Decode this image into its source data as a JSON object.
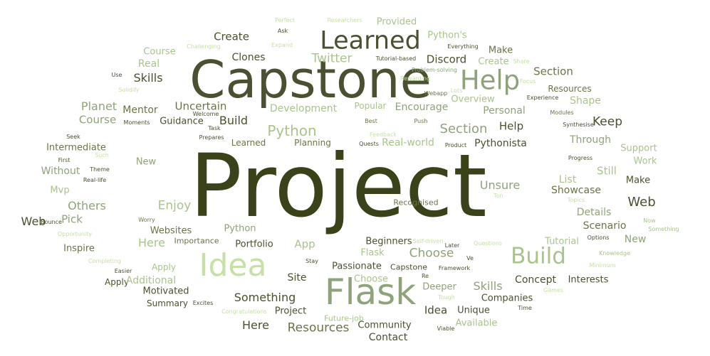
{
  "palette": {
    "c1": "#3a4219",
    "c2": "#4a5030",
    "c3": "#6b7446",
    "c4": "#8fa37a",
    "c5": "#a9c48b",
    "c6": "#c6e0a6"
  },
  "words": [
    {
      "text": "Project",
      "color": "c1"
    },
    {
      "text": "Capstone",
      "color": "c2"
    },
    {
      "text": "Flask",
      "color": "c4"
    },
    {
      "text": "Idea",
      "color": "c6"
    },
    {
      "text": "Learned",
      "color": "c2"
    },
    {
      "text": "Help",
      "color": "c4"
    },
    {
      "text": "Build",
      "color": "c5"
    },
    {
      "text": "Twitter",
      "color": "c5"
    },
    {
      "text": "Create",
      "color": "c2"
    },
    {
      "text": "Provided",
      "color": "c5"
    },
    {
      "text": "Python's",
      "color": "c5"
    },
    {
      "text": "Clones",
      "color": "c2"
    },
    {
      "text": "Discord",
      "color": "c2"
    },
    {
      "text": "Make",
      "color": "c3"
    },
    {
      "text": "Create",
      "color": "c5"
    },
    {
      "text": "Course",
      "color": "c5"
    },
    {
      "text": "Real",
      "color": "c5"
    },
    {
      "text": "Skills",
      "color": "c2"
    },
    {
      "text": "Section",
      "color": "c3"
    },
    {
      "text": "Resources",
      "color": "c3"
    },
    {
      "text": "Shape",
      "color": "c5"
    },
    {
      "text": "Planet",
      "color": "c4"
    },
    {
      "text": "Mentor",
      "color": "c3"
    },
    {
      "text": "Uncertain",
      "color": "c3"
    },
    {
      "text": "Development",
      "color": "c5"
    },
    {
      "text": "Popular",
      "color": "c5"
    },
    {
      "text": "Encourage",
      "color": "c4"
    },
    {
      "text": "Overview",
      "color": "c5"
    },
    {
      "text": "Personal",
      "color": "c4"
    },
    {
      "text": "Course",
      "color": "c4"
    },
    {
      "text": "Guidance",
      "color": "c2"
    },
    {
      "text": "Build",
      "color": "c2"
    },
    {
      "text": "Python",
      "color": "c5"
    },
    {
      "text": "Section",
      "color": "c4"
    },
    {
      "text": "Help",
      "color": "c2"
    },
    {
      "text": "Keep",
      "color": "c2"
    },
    {
      "text": "Through",
      "color": "c4"
    },
    {
      "text": "Intermediate",
      "color": "c3"
    },
    {
      "text": "Learned",
      "color": "c3"
    },
    {
      "text": "Planning",
      "color": "c3"
    },
    {
      "text": "Real-world",
      "color": "c5"
    },
    {
      "text": "Pythonista",
      "color": "c2"
    },
    {
      "text": "Support",
      "color": "c5"
    },
    {
      "text": "Work",
      "color": "c5"
    },
    {
      "text": "New",
      "color": "c4"
    },
    {
      "text": "Without",
      "color": "c4"
    },
    {
      "text": "Still",
      "color": "c5"
    },
    {
      "text": "List",
      "color": "c5"
    },
    {
      "text": "Make",
      "color": "c2"
    },
    {
      "text": "Unsure",
      "color": "c4"
    },
    {
      "text": "Showcase",
      "color": "c3"
    },
    {
      "text": "Mvp",
      "color": "c5"
    },
    {
      "text": "Others",
      "color": "c4"
    },
    {
      "text": "Enjoy",
      "color": "c5"
    },
    {
      "text": "Web",
      "color": "c2"
    },
    {
      "text": "Pick",
      "color": "c4"
    },
    {
      "text": "Web",
      "color": "c2"
    },
    {
      "text": "Recognised",
      "color": "c3"
    },
    {
      "text": "Details",
      "color": "c4"
    },
    {
      "text": "Websites",
      "color": "c3"
    },
    {
      "text": "Python",
      "color": "c4"
    },
    {
      "text": "Scenario",
      "color": "c3"
    },
    {
      "text": "Inspire",
      "color": "c3"
    },
    {
      "text": "Here",
      "color": "c5"
    },
    {
      "text": "Importance",
      "color": "c3"
    },
    {
      "text": "Portfolio",
      "color": "c2"
    },
    {
      "text": "App",
      "color": "c5"
    },
    {
      "text": "Beginners",
      "color": "c2"
    },
    {
      "text": "Tutorial",
      "color": "c5"
    },
    {
      "text": "New",
      "color": "c4"
    },
    {
      "text": "Flask",
      "color": "c5"
    },
    {
      "text": "Choose",
      "color": "c4"
    },
    {
      "text": "Passionate",
      "color": "c2"
    },
    {
      "text": "Site",
      "color": "c2"
    },
    {
      "text": "Apply",
      "color": "c5"
    },
    {
      "text": "Apply",
      "color": "c2"
    },
    {
      "text": "Additional",
      "color": "c5"
    },
    {
      "text": "Motivated",
      "color": "c2"
    },
    {
      "text": "Choose",
      "color": "c5"
    },
    {
      "text": "Capstone",
      "color": "c2"
    },
    {
      "text": "Concept",
      "color": "c2"
    },
    {
      "text": "Interests",
      "color": "c2"
    },
    {
      "text": "Something",
      "color": "c2"
    },
    {
      "text": "Deeper",
      "color": "c4"
    },
    {
      "text": "Skills",
      "color": "c4"
    },
    {
      "text": "Summary",
      "color": "c2"
    },
    {
      "text": "Project",
      "color": "c2"
    },
    {
      "text": "Idea",
      "color": "c2"
    },
    {
      "text": "Unique",
      "color": "c2"
    },
    {
      "text": "Companies",
      "color": "c2"
    },
    {
      "text": "Here",
      "color": "c2"
    },
    {
      "text": "Resources",
      "color": "c3"
    },
    {
      "text": "Future-job",
      "color": "c5"
    },
    {
      "text": "Community",
      "color": "c2"
    },
    {
      "text": "Available",
      "color": "c5"
    },
    {
      "text": "Contact",
      "color": "c2"
    },
    {
      "text": "Perfect",
      "color": "c6"
    },
    {
      "text": "Researchers",
      "color": "c6"
    },
    {
      "text": "Ask",
      "color": "c2"
    },
    {
      "text": "Challenging",
      "color": "c6"
    },
    {
      "text": "Expand",
      "color": "c6"
    },
    {
      "text": "Everything",
      "color": "c2"
    },
    {
      "text": "Tutorial-based",
      "color": "c2"
    },
    {
      "text": "Share",
      "color": "c6"
    },
    {
      "text": "Use",
      "color": "c2"
    },
    {
      "text": "Problem-solving",
      "color": "c4"
    },
    {
      "text": "Rewarding",
      "color": "c6"
    },
    {
      "text": "Solidify",
      "color": "c6"
    },
    {
      "text": "Focus",
      "color": "c6"
    },
    {
      "text": "Experience",
      "color": "c2"
    },
    {
      "text": "Webapp",
      "color": "c3"
    },
    {
      "text": "Lots",
      "color": "c6"
    },
    {
      "text": "Welcome",
      "color": "c2"
    },
    {
      "text": "Moments",
      "color": "c2"
    },
    {
      "text": "Task",
      "color": "c2"
    },
    {
      "text": "Best",
      "color": "c3"
    },
    {
      "text": "Push",
      "color": "c3"
    },
    {
      "text": "Modules",
      "color": "c3"
    },
    {
      "text": "Synthesise",
      "color": "c2"
    },
    {
      "text": "Seek",
      "color": "c2"
    },
    {
      "text": "Prepares",
      "color": "c2"
    },
    {
      "text": "Feedback",
      "color": "c6"
    },
    {
      "text": "Such",
      "color": "c6"
    },
    {
      "text": "Quests",
      "color": "c2"
    },
    {
      "text": "Product",
      "color": "c2"
    },
    {
      "text": "First",
      "color": "c2"
    },
    {
      "text": "Theme",
      "color": "c2"
    },
    {
      "text": "Progress",
      "color": "c2"
    },
    {
      "text": "Real-life",
      "color": "c2"
    },
    {
      "text": "Ton",
      "color": "c6"
    },
    {
      "text": "Topics",
      "color": "c6"
    },
    {
      "text": "Bounce",
      "color": "c2"
    },
    {
      "text": "Worry",
      "color": "c3"
    },
    {
      "text": "Now",
      "color": "c5"
    },
    {
      "text": "Something",
      "color": "c5"
    },
    {
      "text": "Opportunity",
      "color": "c6"
    },
    {
      "text": "Options",
      "color": "c2"
    },
    {
      "text": "Self-driven",
      "color": "c6"
    },
    {
      "text": "Later",
      "color": "c2"
    },
    {
      "text": "Questions",
      "color": "c6"
    },
    {
      "text": "Knowledge",
      "color": "c5"
    },
    {
      "text": "Completing",
      "color": "c6"
    },
    {
      "text": "Stay",
      "color": "c2"
    },
    {
      "text": "Ve",
      "color": "c2"
    },
    {
      "text": "Minimum",
      "color": "c6"
    },
    {
      "text": "Easier",
      "color": "c2"
    },
    {
      "text": "Framework",
      "color": "c2"
    },
    {
      "text": "Re",
      "color": "c2"
    },
    {
      "text": "Tough",
      "color": "c6"
    },
    {
      "text": "Games",
      "color": "c6"
    },
    {
      "text": "Excites",
      "color": "c2"
    },
    {
      "text": "Time",
      "color": "c2"
    },
    {
      "text": "Congratulations",
      "color": "c6"
    },
    {
      "text": "Viable",
      "color": "c2"
    }
  ]
}
